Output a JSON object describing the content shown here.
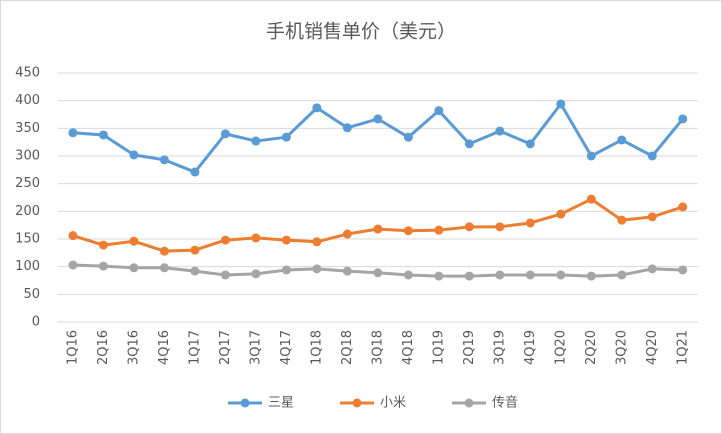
{
  "chart_data": {
    "type": "line",
    "title": "手机销售单价（美元）",
    "categories": [
      "1Q16",
      "2Q16",
      "3Q16",
      "4Q16",
      "1Q17",
      "2Q17",
      "3Q17",
      "4Q17",
      "1Q18",
      "2Q18",
      "3Q18",
      "4Q18",
      "1Q19",
      "2Q19",
      "3Q19",
      "4Q19",
      "1Q20",
      "2Q20",
      "3Q20",
      "4Q20",
      "1Q21"
    ],
    "series": [
      {
        "name": "三星",
        "color": "#5b9bd5",
        "values": [
          342,
          338,
          302,
          293,
          271,
          340,
          327,
          334,
          387,
          351,
          367,
          334,
          382,
          322,
          345,
          322,
          394,
          300,
          329,
          300,
          367
        ]
      },
      {
        "name": "小米",
        "color": "#ed7d31",
        "values": [
          156,
          139,
          146,
          128,
          130,
          148,
          152,
          148,
          145,
          159,
          168,
          165,
          166,
          172,
          172,
          179,
          195,
          222,
          184,
          190,
          208
        ]
      },
      {
        "name": "传音",
        "color": "#a5a5a5",
        "values": [
          103,
          101,
          98,
          98,
          92,
          85,
          87,
          94,
          96,
          92,
          89,
          85,
          83,
          83,
          85,
          85,
          85,
          83,
          85,
          96,
          94
        ]
      }
    ],
    "ylim": [
      0,
      450
    ],
    "yticks": [
      0,
      50,
      100,
      150,
      200,
      250,
      300,
      350,
      400,
      450
    ],
    "grid": true,
    "legend": "bottom"
  }
}
